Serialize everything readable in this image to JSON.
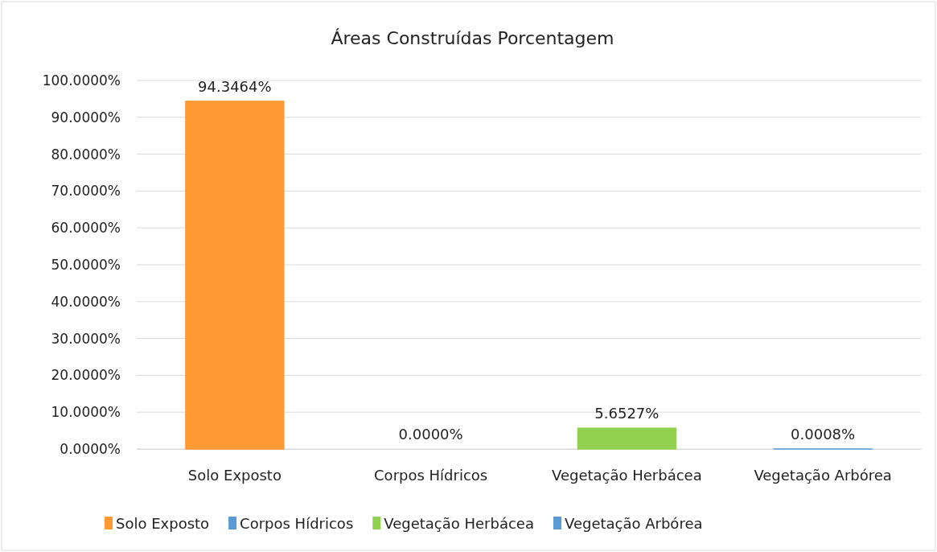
{
  "chart_data": {
    "type": "bar",
    "title": "Áreas Construídas Porcentagem",
    "categories": [
      "Solo Exposto",
      "Corpos Hídricos",
      "Vegetação Herbácea",
      "Vegetação Arbórea"
    ],
    "series": [
      {
        "name": "Solo Exposto",
        "color": "#ff9933",
        "values": [
          94.3464,
          null,
          null,
          null
        ],
        "value_labels": [
          "94.3464%",
          null,
          null,
          null
        ]
      },
      {
        "name": "Corpos Hídricos",
        "color": "#5b9bd5",
        "values": [
          null,
          0.0,
          null,
          null
        ],
        "value_labels": [
          null,
          "0.0000%",
          null,
          null
        ]
      },
      {
        "name": "Vegetação Herbácea",
        "color": "#92d050",
        "values": [
          null,
          null,
          5.6527,
          null
        ],
        "value_labels": [
          null,
          null,
          "5.6527%",
          null
        ]
      },
      {
        "name": "Vegetação Arbórea",
        "color": "#5b9bd5",
        "values": [
          null,
          null,
          null,
          0.0008
        ],
        "value_labels": [
          null,
          null,
          null,
          "0.0008%"
        ]
      }
    ],
    "ylim": [
      0,
      100
    ],
    "yticks": [
      {
        "value": 0,
        "label": "0.0000%"
      },
      {
        "value": 10,
        "label": "10.0000%"
      },
      {
        "value": 20,
        "label": "20.0000%"
      },
      {
        "value": 30,
        "label": "30.0000%"
      },
      {
        "value": 40,
        "label": "40.0000%"
      },
      {
        "value": 50,
        "label": "50.0000%"
      },
      {
        "value": 60,
        "label": "60.0000%"
      },
      {
        "value": 70,
        "label": "70.0000%"
      },
      {
        "value": 80,
        "label": "80.0000%"
      },
      {
        "value": 90,
        "label": "90.0000%"
      },
      {
        "value": 100,
        "label": "100.0000%"
      }
    ],
    "grid": "y",
    "legend": "bottom"
  }
}
